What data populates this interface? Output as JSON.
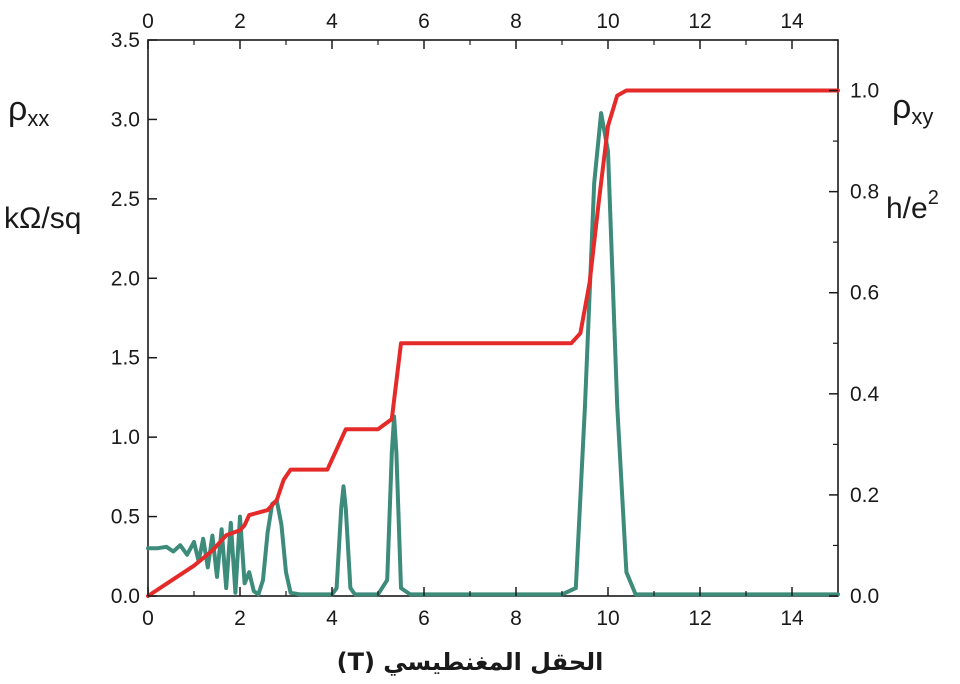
{
  "chart_data": {
    "type": "line",
    "xlabel": "الحقل المغنطيسي (T)",
    "xlim": [
      0,
      15
    ],
    "xticks": [
      0,
      2,
      4,
      6,
      8,
      10,
      12,
      14
    ],
    "left_axis": {
      "label": "ρ",
      "label_sub": "xx",
      "unit_label": "kΩ/sq",
      "ylim": [
        0,
        3.5
      ],
      "ticks": [
        "0.0",
        "0.5",
        "1.0",
        "1.5",
        "2.0",
        "2.5",
        "3.0",
        "3.5"
      ]
    },
    "right_axis": {
      "label": "ρ",
      "label_sub": "xy",
      "unit_label": "h/e",
      "unit_sup": "2",
      "ylim": [
        0,
        1.1
      ],
      "ticks": [
        "0.0",
        "0.2",
        "0.4",
        "0.6",
        "0.8",
        "1.0"
      ]
    },
    "grid": false,
    "series": [
      {
        "axis": "left",
        "color": "#3d8b7a",
        "x": [
          0,
          0.2,
          0.4,
          0.55,
          0.7,
          0.85,
          1.0,
          1.1,
          1.2,
          1.3,
          1.4,
          1.5,
          1.6,
          1.7,
          1.8,
          1.9,
          2.0,
          2.1,
          2.2,
          2.3,
          2.4,
          2.5,
          2.6,
          2.7,
          2.8,
          2.9,
          3.0,
          3.1,
          3.3,
          4.0,
          4.1,
          4.2,
          4.25,
          4.3,
          4.4,
          4.5,
          5.0,
          5.2,
          5.3,
          5.35,
          5.4,
          5.5,
          5.7,
          9.0,
          9.3,
          9.5,
          9.7,
          9.85,
          10.0,
          10.2,
          10.4,
          10.6,
          15.0
        ],
        "y": [
          0.3,
          0.3,
          0.31,
          0.28,
          0.32,
          0.26,
          0.34,
          0.22,
          0.36,
          0.18,
          0.38,
          0.12,
          0.42,
          0.05,
          0.46,
          0.02,
          0.5,
          0.08,
          0.15,
          0.03,
          0.01,
          0.1,
          0.4,
          0.58,
          0.6,
          0.45,
          0.15,
          0.02,
          0.01,
          0.01,
          0.05,
          0.55,
          0.69,
          0.55,
          0.05,
          0.01,
          0.01,
          0.1,
          0.9,
          1.13,
          0.9,
          0.05,
          0.01,
          0.01,
          0.05,
          1.2,
          2.6,
          3.04,
          2.8,
          1.2,
          0.15,
          0.01,
          0.01
        ]
      },
      {
        "axis": "right",
        "color": "#e52a2a",
        "x": [
          0,
          0.5,
          1.0,
          1.4,
          1.7,
          2.0,
          2.1,
          2.2,
          2.6,
          2.8,
          2.95,
          3.1,
          3.9,
          4.1,
          4.3,
          5.0,
          5.3,
          5.5,
          9.2,
          9.4,
          9.6,
          9.8,
          10.0,
          10.2,
          10.4,
          15.0
        ],
        "y": [
          0.0,
          0.03,
          0.06,
          0.09,
          0.12,
          0.13,
          0.14,
          0.16,
          0.17,
          0.19,
          0.23,
          0.25,
          0.25,
          0.29,
          0.33,
          0.33,
          0.35,
          0.5,
          0.5,
          0.52,
          0.62,
          0.78,
          0.93,
          0.99,
          1.0,
          1.0
        ]
      }
    ]
  }
}
